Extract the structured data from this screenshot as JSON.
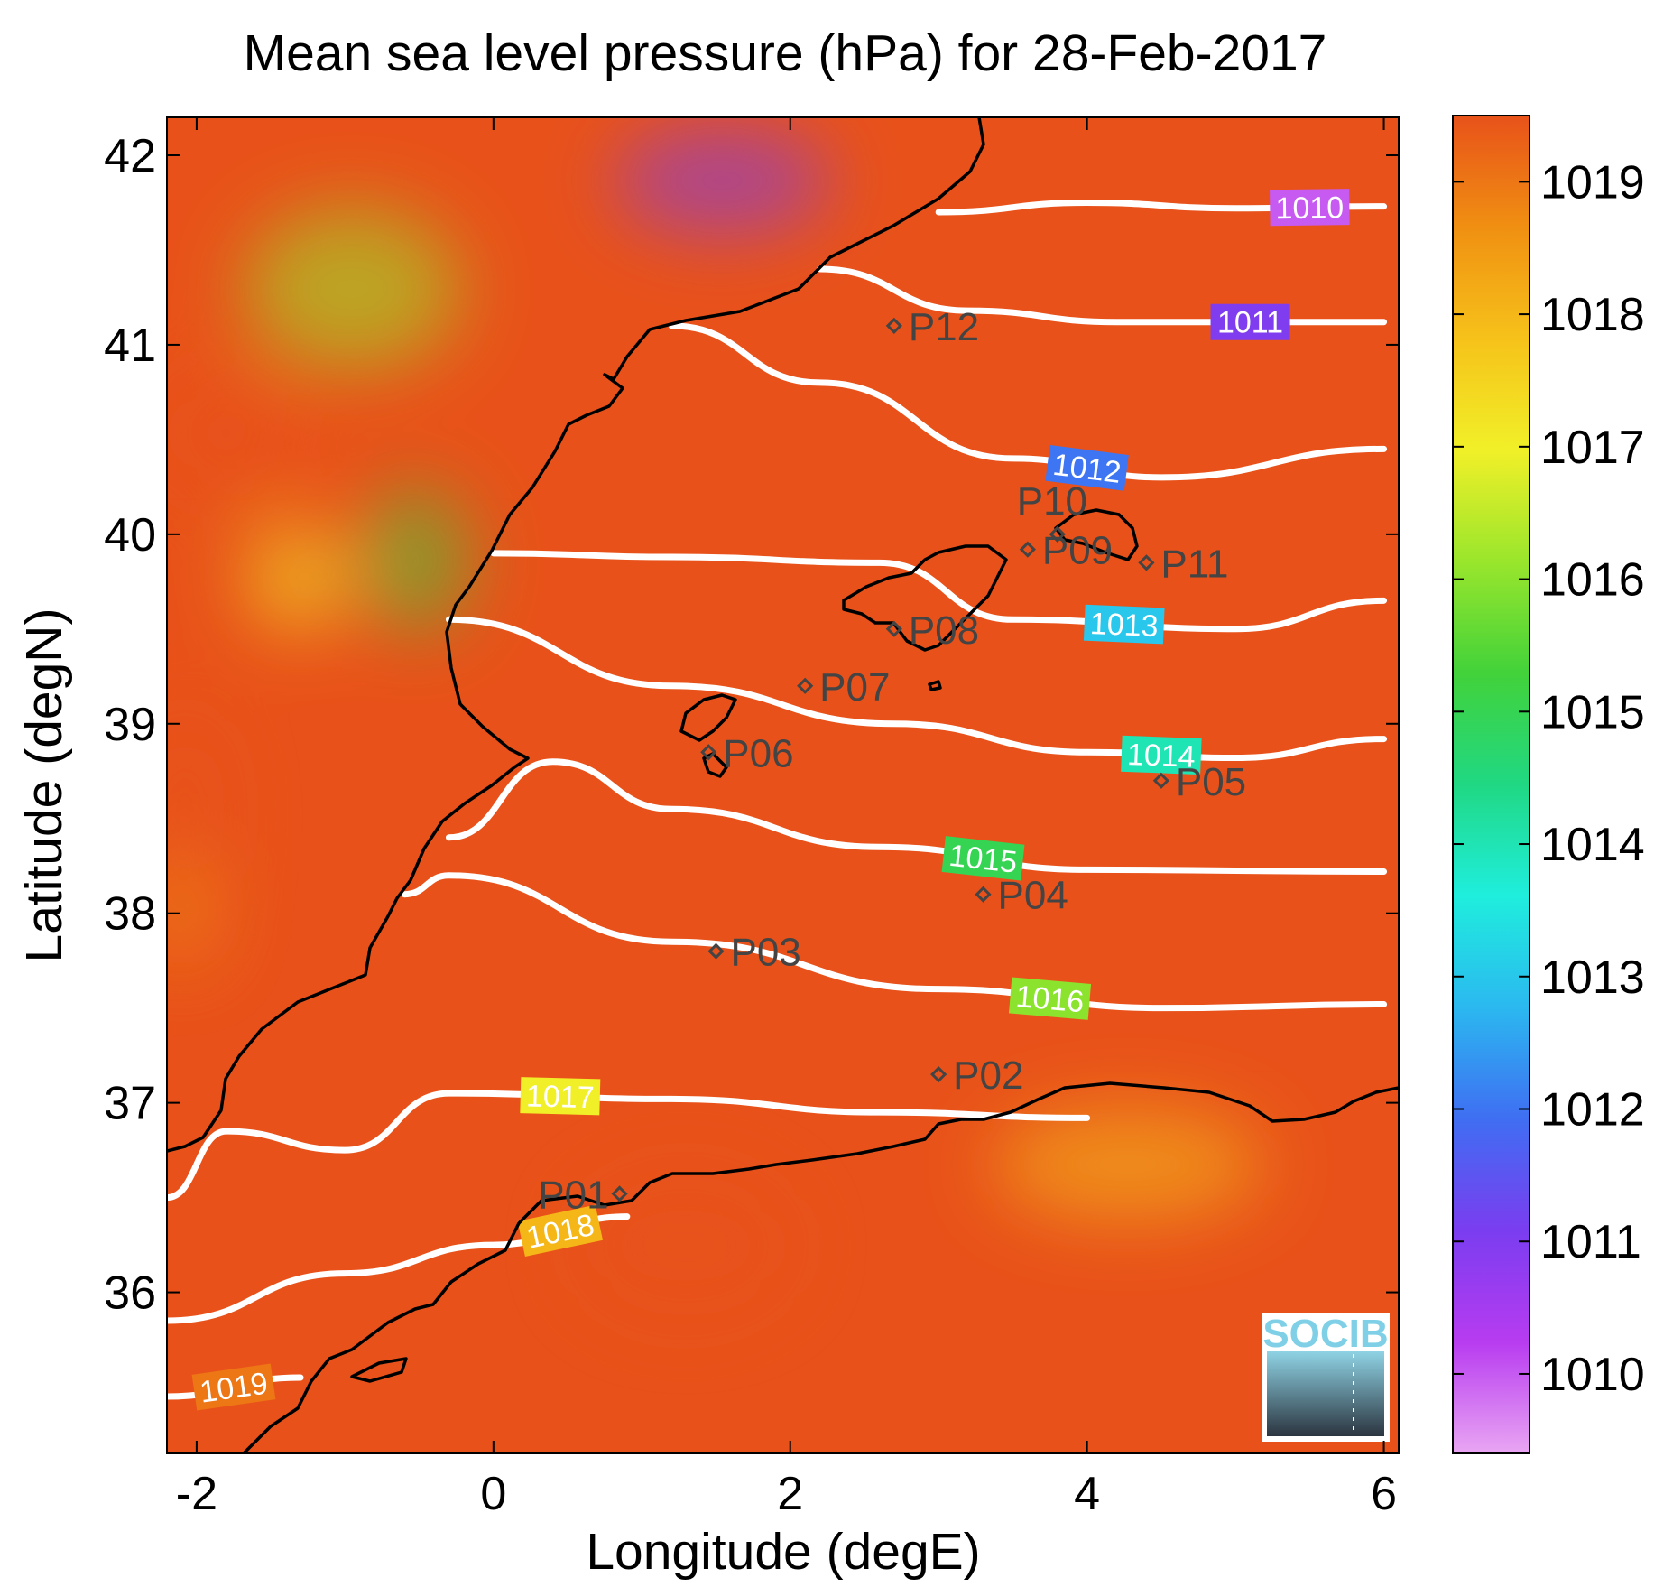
{
  "chart_data": {
    "type": "heatmap",
    "title": "Mean sea level pressure (hPa) for 28-Feb-2017",
    "xlabel": "Longitude (degE)",
    "ylabel": "Latitude (degN)",
    "xlim": [
      -2.2,
      6.1
    ],
    "ylim": [
      35.15,
      42.2
    ],
    "xticks": [
      -2,
      0,
      2,
      4,
      6
    ],
    "yticks": [
      36,
      37,
      38,
      39,
      40,
      41,
      42
    ],
    "colorbar": {
      "range": [
        1009.4,
        1019.5
      ],
      "ticks": [
        1010,
        1011,
        1012,
        1013,
        1014,
        1015,
        1016,
        1017,
        1018,
        1019
      ],
      "colors": [
        "#e9a6f3",
        "#b83cf0",
        "#7a3df0",
        "#3f6ef2",
        "#2bb8f0",
        "#1feedd",
        "#20d883",
        "#42d23a",
        "#9ae62c",
        "#f1f028",
        "#f6c21a",
        "#f08f12",
        "#e8521a"
      ]
    },
    "contours": [
      {
        "level": 1010,
        "label": "1010",
        "points": [
          [
            3.0,
            41.7
          ],
          [
            4.0,
            41.75
          ],
          [
            5.0,
            41.72
          ],
          [
            6.0,
            41.73
          ]
        ]
      },
      {
        "level": 1011,
        "label": "1011",
        "points": [
          [
            2.2,
            41.4
          ],
          [
            3.2,
            41.18
          ],
          [
            4.2,
            41.12
          ],
          [
            6.0,
            41.12
          ]
        ]
      },
      {
        "level": 1012,
        "label": "1012",
        "points": [
          [
            1.2,
            41.1
          ],
          [
            2.2,
            40.8
          ],
          [
            3.5,
            40.4
          ],
          [
            4.5,
            40.3
          ],
          [
            6.0,
            40.45
          ]
        ]
      },
      {
        "level": 1013,
        "label": "1013",
        "points": [
          [
            0.0,
            39.9
          ],
          [
            1.2,
            39.88
          ],
          [
            2.6,
            39.85
          ],
          [
            3.5,
            39.55
          ],
          [
            5.0,
            39.5
          ],
          [
            6.0,
            39.65
          ]
        ]
      },
      {
        "level": 1014,
        "label": "1014",
        "points": [
          [
            -0.3,
            39.55
          ],
          [
            1.2,
            39.2
          ],
          [
            2.7,
            39.0
          ],
          [
            4.0,
            38.85
          ],
          [
            5.0,
            38.82
          ],
          [
            6.0,
            38.92
          ]
        ]
      },
      {
        "level": 1015,
        "label": "1015",
        "points": [
          [
            -0.3,
            38.4
          ],
          [
            0.4,
            38.8
          ],
          [
            1.2,
            38.55
          ],
          [
            2.6,
            38.35
          ],
          [
            4.0,
            38.23
          ],
          [
            6.0,
            38.22
          ]
        ]
      },
      {
        "level": 1016,
        "label": "1016",
        "points": [
          [
            -0.6,
            38.1
          ],
          [
            -0.3,
            38.2
          ],
          [
            1.2,
            37.85
          ],
          [
            3.0,
            37.6
          ],
          [
            4.5,
            37.5
          ],
          [
            6.0,
            37.52
          ]
        ]
      },
      {
        "level": 1017,
        "label": "1017",
        "points": [
          [
            -2.2,
            36.5
          ],
          [
            -1.8,
            36.85
          ],
          [
            -1.0,
            36.75
          ],
          [
            -0.3,
            37.05
          ],
          [
            1.2,
            37.02
          ],
          [
            2.6,
            36.95
          ],
          [
            4.0,
            36.92
          ]
        ]
      },
      {
        "level": 1018,
        "label": "1018",
        "points": [
          [
            -2.2,
            35.85
          ],
          [
            -1.0,
            36.1
          ],
          [
            0.0,
            36.25
          ],
          [
            0.9,
            36.4
          ]
        ]
      },
      {
        "level": 1019,
        "label": "1019",
        "points": [
          [
            -2.2,
            35.45
          ],
          [
            -1.3,
            35.55
          ]
        ]
      }
    ],
    "stations": [
      {
        "label": "P01",
        "lon": 0.85,
        "lat": 36.52
      },
      {
        "label": "P02",
        "lon": 3.0,
        "lat": 37.15
      },
      {
        "label": "P03",
        "lon": 1.5,
        "lat": 37.8
      },
      {
        "label": "P04",
        "lon": 3.3,
        "lat": 38.1
      },
      {
        "label": "P05",
        "lon": 4.5,
        "lat": 38.7
      },
      {
        "label": "P06",
        "lon": 1.45,
        "lat": 38.85
      },
      {
        "label": "P07",
        "lon": 2.1,
        "lat": 39.2
      },
      {
        "label": "P08",
        "lon": 2.7,
        "lat": 39.5
      },
      {
        "label": "P09",
        "lon": 3.6,
        "lat": 39.92
      },
      {
        "label": "P10",
        "lon": 3.8,
        "lat": 40.0
      },
      {
        "label": "P11",
        "lon": 4.4,
        "lat": 39.85
      },
      {
        "label": "P12",
        "lon": 2.7,
        "lat": 41.1
      }
    ]
  },
  "logo": {
    "text": "SOCIB"
  }
}
